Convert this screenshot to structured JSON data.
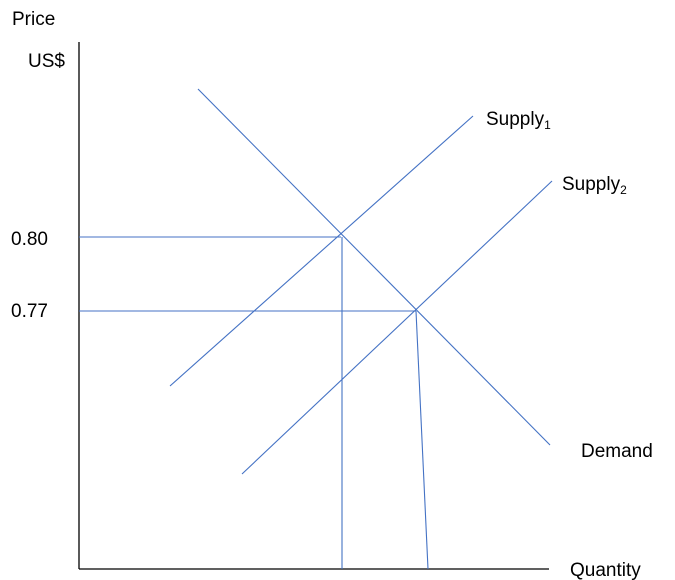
{
  "diagram": {
    "y_axis_label_line1": "Price",
    "y_axis_label_line2": "US$",
    "x_axis_label": "Quantity",
    "price_ticks": [
      "0.80",
      "0.77"
    ],
    "supply1_label": "Supply",
    "supply1_subscript": "1",
    "supply2_label": "Supply",
    "supply2_subscript": "2",
    "demand_label": "Demand",
    "line_color": "#4472c4",
    "axis_color": "#000000"
  }
}
